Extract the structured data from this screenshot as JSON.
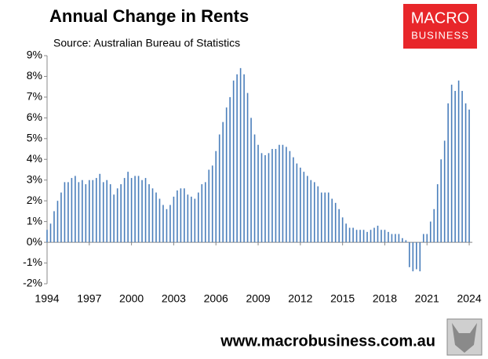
{
  "chart_data": {
    "type": "bar",
    "title": "Annual Change in Rents",
    "subtitle": "Source: Australian Bureau of Statistics",
    "logo": [
      "MACRO",
      "BUSINESS"
    ],
    "footer": "www.macrobusiness.com.au",
    "color": "#4a7ebb",
    "x": [
      1994,
      1994.25,
      1994.5,
      1994.75,
      1995,
      1995.25,
      1995.5,
      1995.75,
      1996,
      1996.25,
      1996.5,
      1996.75,
      1997,
      1997.25,
      1997.5,
      1997.75,
      1998,
      1998.25,
      1998.5,
      1998.75,
      1999,
      1999.25,
      1999.5,
      1999.75,
      2000,
      2000.25,
      2000.5,
      2000.75,
      2001,
      2001.25,
      2001.5,
      2001.75,
      2002,
      2002.25,
      2002.5,
      2002.75,
      2003,
      2003.25,
      2003.5,
      2003.75,
      2004,
      2004.25,
      2004.5,
      2004.75,
      2005,
      2005.25,
      2005.5,
      2005.75,
      2006,
      2006.25,
      2006.5,
      2006.75,
      2007,
      2007.25,
      2007.5,
      2007.75,
      2008,
      2008.25,
      2008.5,
      2008.75,
      2009,
      2009.25,
      2009.5,
      2009.75,
      2010,
      2010.25,
      2010.5,
      2010.75,
      2011,
      2011.25,
      2011.5,
      2011.75,
      2012,
      2012.25,
      2012.5,
      2012.75,
      2013,
      2013.25,
      2013.5,
      2013.75,
      2014,
      2014.25,
      2014.5,
      2014.75,
      2015,
      2015.25,
      2015.5,
      2015.75,
      2016,
      2016.25,
      2016.5,
      2016.75,
      2017,
      2017.25,
      2017.5,
      2017.75,
      2018,
      2018.25,
      2018.5,
      2018.75,
      2019,
      2019.25,
      2019.5,
      2019.75,
      2020,
      2020.25,
      2020.5,
      2020.75,
      2021,
      2021.25,
      2021.5,
      2021.75,
      2022,
      2022.25,
      2022.5,
      2022.75,
      2023,
      2023.25,
      2023.5,
      2023.75,
      2024
    ],
    "values": [
      0.6,
      0.9,
      1.5,
      2.0,
      2.4,
      2.9,
      2.9,
      3.1,
      3.2,
      2.9,
      3.0,
      2.8,
      3.0,
      3.0,
      3.1,
      3.3,
      2.9,
      3.0,
      2.8,
      2.3,
      2.6,
      2.8,
      3.1,
      3.4,
      3.1,
      3.2,
      3.2,
      3.0,
      3.1,
      2.8,
      2.6,
      2.4,
      2.1,
      1.8,
      1.6,
      1.8,
      2.2,
      2.5,
      2.6,
      2.6,
      2.3,
      2.2,
      2.1,
      2.4,
      2.8,
      2.9,
      3.5,
      3.7,
      4.4,
      5.2,
      5.8,
      6.5,
      7.0,
      7.8,
      8.1,
      8.4,
      8.1,
      7.2,
      6.0,
      5.2,
      4.7,
      4.3,
      4.2,
      4.3,
      4.5,
      4.5,
      4.7,
      4.7,
      4.6,
      4.4,
      4.1,
      3.8,
      3.6,
      3.4,
      3.2,
      3.0,
      2.9,
      2.7,
      2.4,
      2.4,
      2.4,
      2.1,
      1.9,
      1.6,
      1.2,
      0.9,
      0.7,
      0.7,
      0.6,
      0.6,
      0.6,
      0.5,
      0.6,
      0.7,
      0.8,
      0.6,
      0.6,
      0.5,
      0.4,
      0.4,
      0.4,
      0.2,
      0.1,
      -1.2,
      -1.4,
      -1.3,
      -1.4,
      0.4,
      0.4,
      1.0,
      1.6,
      2.8,
      4.0,
      4.9,
      6.7,
      7.6,
      7.3,
      7.8,
      7.3,
      6.7,
      6.4
    ],
    "xlim": [
      1994,
      2025
    ],
    "xticks": [
      1994,
      1997,
      2000,
      2003,
      2006,
      2009,
      2012,
      2015,
      2018,
      2021,
      2024
    ],
    "ylim": [
      -2,
      9
    ],
    "yticks": [
      {
        "value": -2,
        "label": "-2%"
      },
      {
        "value": -1,
        "label": "-1%"
      },
      {
        "value": 0,
        "label": "0%"
      },
      {
        "value": 1,
        "label": "1%"
      },
      {
        "value": 2,
        "label": "2%"
      },
      {
        "value": 3,
        "label": "3%"
      },
      {
        "value": 4,
        "label": "4%"
      },
      {
        "value": 5,
        "label": "5%"
      },
      {
        "value": 6,
        "label": "6%"
      },
      {
        "value": 7,
        "label": "7%"
      },
      {
        "value": 8,
        "label": "8%"
      },
      {
        "value": 9,
        "label": "9%"
      }
    ]
  }
}
